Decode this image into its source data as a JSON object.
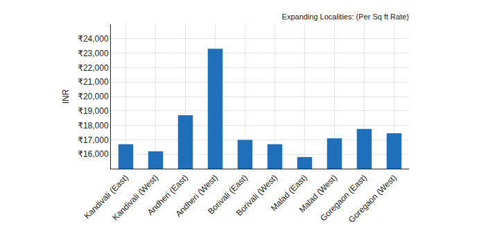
{
  "chart_data": {
    "type": "bar",
    "title": "Expanding Localities: (Per Sq ft Rate)",
    "y_label": "INR",
    "categories": [
      "Kandivali (East)",
      "Kandivali (West)",
      "Andheri (East)",
      "Andheri (West)",
      "Borivali (East)",
      "Borivali (West)",
      "Malad (East)",
      "Malad (West)",
      "Goregaon (East)",
      "Goregaon (West)"
    ],
    "values": [
      16700,
      16200,
      18700,
      23300,
      17000,
      16700,
      15800,
      17100,
      17750,
      17450
    ],
    "color": "#1f6fba",
    "ylim": [
      15000,
      25000
    ],
    "yticks": [
      {
        "value": 16000,
        "label": "₹16,000"
      },
      {
        "value": 17000,
        "label": "₹17,000"
      },
      {
        "value": 18000,
        "label": "₹18,000"
      },
      {
        "value": 19000,
        "label": "₹19,000"
      },
      {
        "value": 20000,
        "label": "₹20,000"
      },
      {
        "value": 21000,
        "label": "₹21,000"
      },
      {
        "value": 22000,
        "label": "₹22,000"
      },
      {
        "value": 23000,
        "label": "₹23,000"
      },
      {
        "value": 24000,
        "label": "₹24,000"
      }
    ],
    "grid": true
  }
}
